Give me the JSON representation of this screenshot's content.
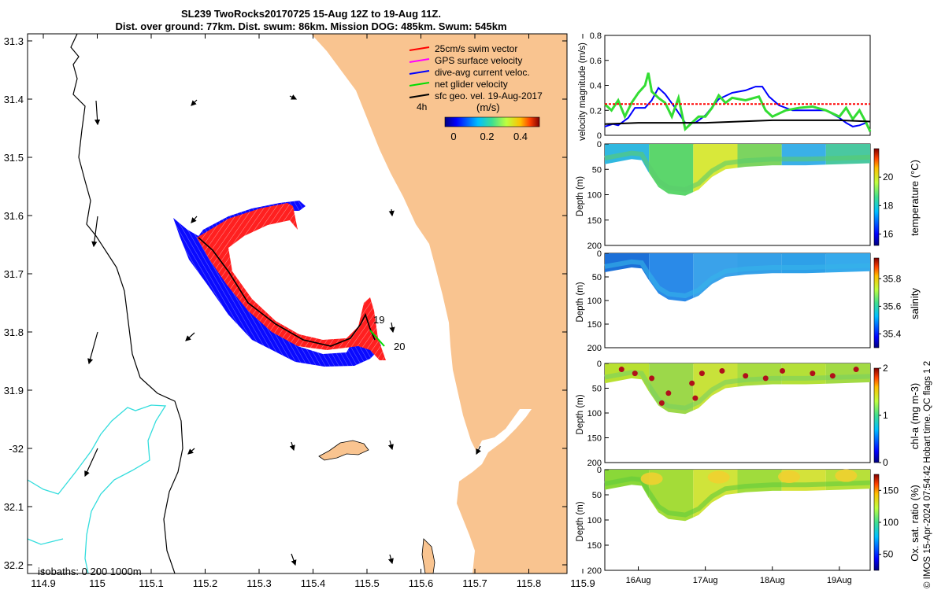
{
  "title": {
    "line1": "SL239 TwoRocks20170725 15-Aug 12Z to 19-Aug 11Z.",
    "line2": "Dist. over ground: 77km. Dist. swum: 86km. Mission DOG: 485km. Swum: 545km"
  },
  "stamp": "© IMOS 15-Apr-2024 07:54:42 Hobart time. QC flags 1  2",
  "map": {
    "lon_ticks": [
      "114.9",
      "115",
      "115.1",
      "115.2",
      "115.3",
      "115.4",
      "115.5",
      "115.6",
      "115.7",
      "115.8",
      "115.9"
    ],
    "lat_ticks": [
      "31.3",
      "31.4",
      "31.5",
      "31.6",
      "31.7",
      "31.8",
      "31.9",
      "-32",
      "32.1",
      "32.2"
    ],
    "legend": [
      {
        "label": "25cm/s swim vector",
        "color": "#ff0000"
      },
      {
        "label": "GPS surface velocity",
        "color": "#ff00ff"
      },
      {
        "label": "dive-avg current veloc.",
        "color": "#0000ff"
      },
      {
        "label": "net glider velocity",
        "color": "#00dd00"
      },
      {
        "label": "sfc geo. vel. 19-Aug-2017",
        "color": "#000000"
      }
    ],
    "legend_lag": "4h",
    "colorbar_units": "(m/s)",
    "colorbar_ticks": [
      "0",
      "0.2",
      "0.4"
    ],
    "day_labels": [
      "19",
      "20"
    ],
    "isobath_text": "isobaths: 0   200  1000m",
    "colors": {
      "land": "#f9c490",
      "isobath200": "#000000",
      "isobath1000": "#33dddd"
    }
  },
  "chart_data": [
    {
      "type": "line",
      "title": "",
      "ylabel": "velocity magnitude (m/s)",
      "ylim": [
        0,
        0.8
      ],
      "yticks": [
        "0",
        "0.2",
        "0.4",
        "0.6",
        "0.8"
      ],
      "xlim": [
        15.5,
        19.46
      ],
      "series": [
        {
          "name": "dive-avg current veloc.",
          "color": "#0000ff",
          "x": [
            15.5,
            15.62,
            15.7,
            15.85,
            15.95,
            16.1,
            16.2,
            16.3,
            16.4,
            16.55,
            16.7,
            16.85,
            17.0,
            17.2,
            17.4,
            17.6,
            17.75,
            17.85,
            17.95,
            18.1,
            18.3,
            18.5,
            18.8,
            19.0,
            19.1,
            19.2,
            19.3,
            19.4
          ],
          "values": [
            0.07,
            0.09,
            0.08,
            0.14,
            0.22,
            0.22,
            0.28,
            0.38,
            0.33,
            0.22,
            0.1,
            0.1,
            0.16,
            0.29,
            0.34,
            0.36,
            0.39,
            0.39,
            0.31,
            0.24,
            0.2,
            0.2,
            0.2,
            0.14,
            0.1,
            0.07,
            0.08,
            0.1
          ]
        },
        {
          "name": "net glider velocity",
          "color": "#33dd33",
          "x": [
            15.5,
            15.6,
            15.7,
            15.8,
            15.9,
            16.0,
            16.1,
            16.15,
            16.2,
            16.3,
            16.4,
            16.5,
            16.6,
            16.7,
            16.8,
            16.9,
            17.0,
            17.1,
            17.2,
            17.3,
            17.4,
            17.6,
            17.8,
            17.9,
            18.0,
            18.2,
            18.4,
            18.6,
            18.8,
            19.0,
            19.1,
            19.2,
            19.3,
            19.4,
            19.46
          ],
          "values": [
            0.25,
            0.2,
            0.28,
            0.15,
            0.26,
            0.34,
            0.4,
            0.5,
            0.35,
            0.3,
            0.26,
            0.15,
            0.3,
            0.05,
            0.1,
            0.15,
            0.15,
            0.22,
            0.32,
            0.26,
            0.3,
            0.28,
            0.31,
            0.2,
            0.15,
            0.2,
            0.22,
            0.23,
            0.2,
            0.15,
            0.22,
            0.13,
            0.2,
            0.1,
            0.03
          ]
        },
        {
          "name": "sfc geo. vel.",
          "color": "#000000",
          "x": [
            15.5,
            16.0,
            16.5,
            17.0,
            17.5,
            18.0,
            18.5,
            19.0,
            19.46
          ],
          "values": [
            0.09,
            0.1,
            0.1,
            0.1,
            0.11,
            0.12,
            0.12,
            0.12,
            0.11
          ]
        },
        {
          "name": "25cm/s swim reference",
          "color": "#ff0000",
          "x": [
            15.5,
            19.46
          ],
          "values": [
            0.25,
            0.25
          ]
        }
      ]
    },
    {
      "type": "heatmap",
      "ylabel": "Depth (m)",
      "clabel": "temperature (°C)",
      "ylim": [
        0,
        200
      ],
      "yticks": [
        "0",
        "50",
        "100",
        "150",
        "200"
      ],
      "cticks": [
        "16",
        "18",
        "20"
      ],
      "crange": [
        15.2,
        22
      ]
    },
    {
      "type": "heatmap",
      "ylabel": "Depth (m)",
      "clabel": "salinity",
      "ylim": [
        0,
        200
      ],
      "yticks": [
        "0",
        "50",
        "100",
        "150",
        "200"
      ],
      "cticks": [
        "35.4",
        "35.6",
        "35.8"
      ],
      "crange": [
        35.3,
        35.95
      ]
    },
    {
      "type": "heatmap",
      "ylabel": "Depth (m)",
      "clabel": "chl-a (mg m-3)",
      "ylim": [
        0,
        200
      ],
      "yticks": [
        "0",
        "50",
        "100",
        "150",
        "200"
      ],
      "cticks": [
        "0",
        "1",
        "2"
      ],
      "crange": [
        0,
        2
      ]
    },
    {
      "type": "heatmap",
      "ylabel": "Depth (m)",
      "clabel": "Ox. sat. ratio (%)",
      "ylim": [
        0,
        200
      ],
      "yticks": [
        "0",
        "50",
        "100",
        "150",
        "200"
      ],
      "cticks": [
        "50",
        "100",
        "150"
      ],
      "crange": [
        25,
        175
      ],
      "xticks": [
        "16Aug",
        "17Aug",
        "18Aug",
        "19Aug"
      ],
      "xtick_values": [
        16,
        17,
        18,
        19
      ]
    }
  ]
}
